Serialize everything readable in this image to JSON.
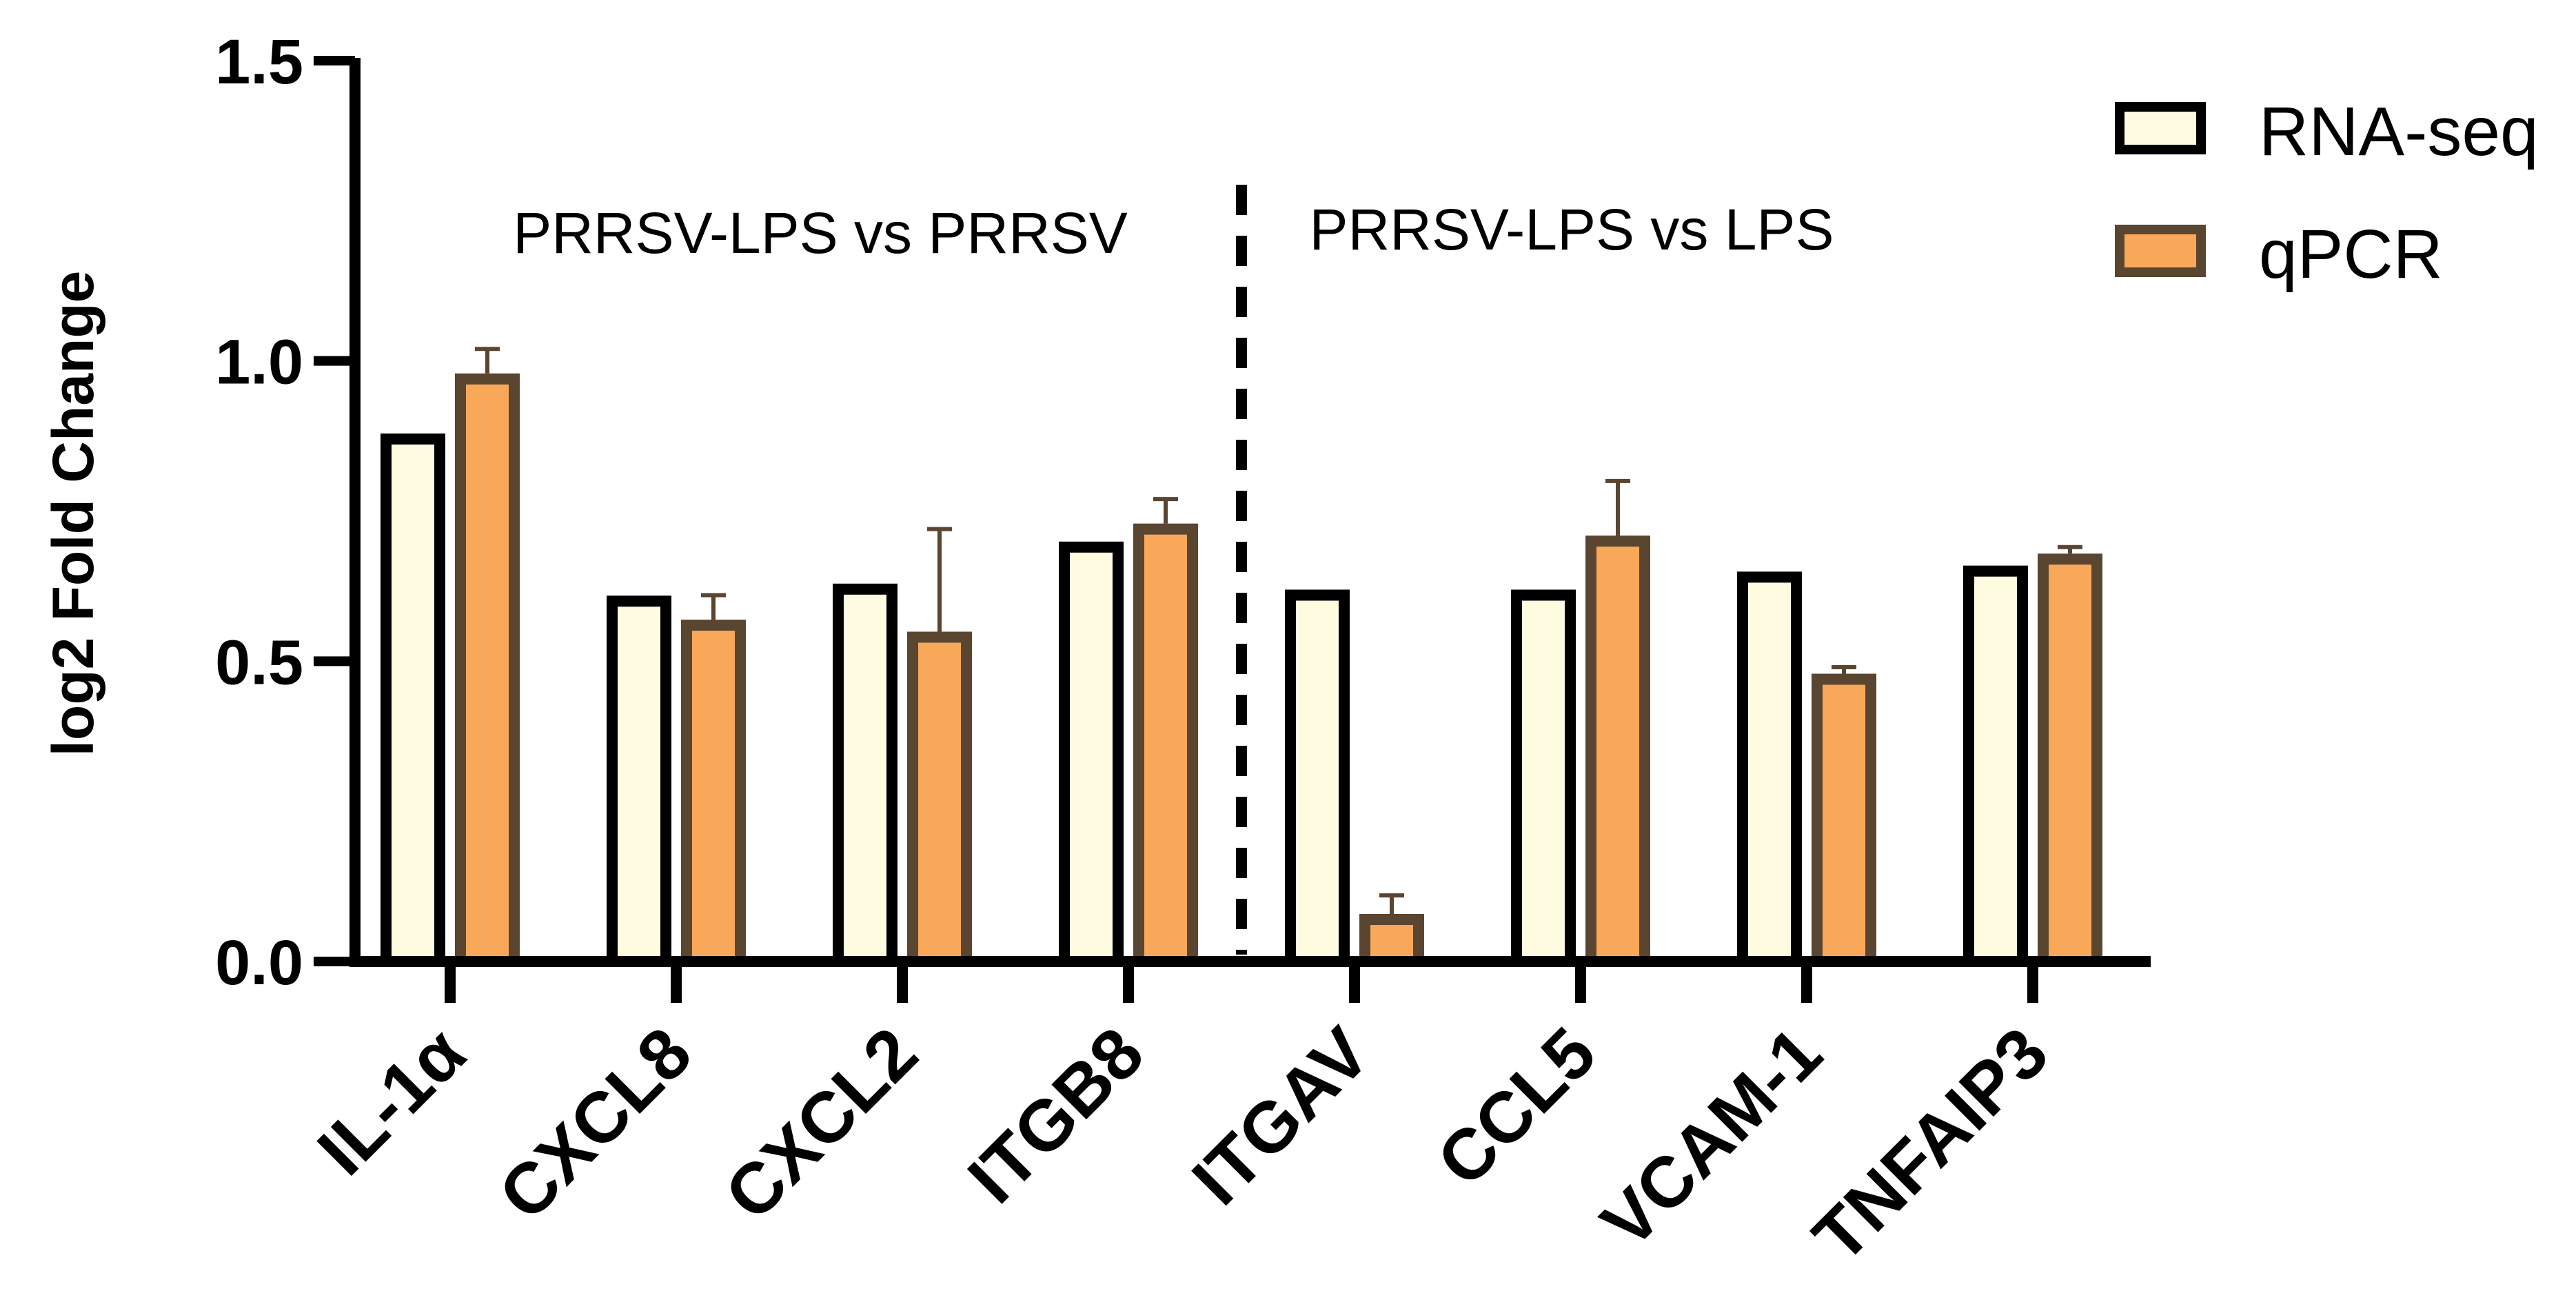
{
  "chart_data": {
    "type": "bar",
    "title": "",
    "xlabel": "",
    "ylabel": "log2 Fold Change",
    "ylim": [
      0.0,
      1.5
    ],
    "yticks": [
      "0.0",
      "0.5",
      "1.0",
      "1.5"
    ],
    "categories": [
      "IL-1α",
      "CXCL8",
      "CXCL2",
      "ITGB8",
      "ITGAV",
      "CCL5",
      "VCAM-1",
      "TNFAIP3"
    ],
    "series": [
      {
        "name": "RNA-seq",
        "values": [
          0.87,
          0.6,
          0.62,
          0.69,
          0.61,
          0.61,
          0.64,
          0.65
        ],
        "errors": null
      },
      {
        "name": "qPCR",
        "values": [
          0.97,
          0.56,
          0.54,
          0.72,
          0.07,
          0.7,
          0.47,
          0.67
        ],
        "errors": [
          0.05,
          0.05,
          0.18,
          0.05,
          0.04,
          0.1,
          0.02,
          0.02
        ]
      }
    ],
    "annotations": [
      "PRRSV-LPS vs PRRSV",
      "PRRSV-LPS vs LPS"
    ],
    "divider_between_categories": [
      3,
      4
    ],
    "legend_position": "top-right",
    "colors": {
      "rnaseq_fill": "#fefbe0",
      "rnaseq_stroke": "#000000",
      "qpcr_fill": "#f9a85a",
      "qpcr_stroke": "#5a4531",
      "axis": "#000000"
    }
  }
}
